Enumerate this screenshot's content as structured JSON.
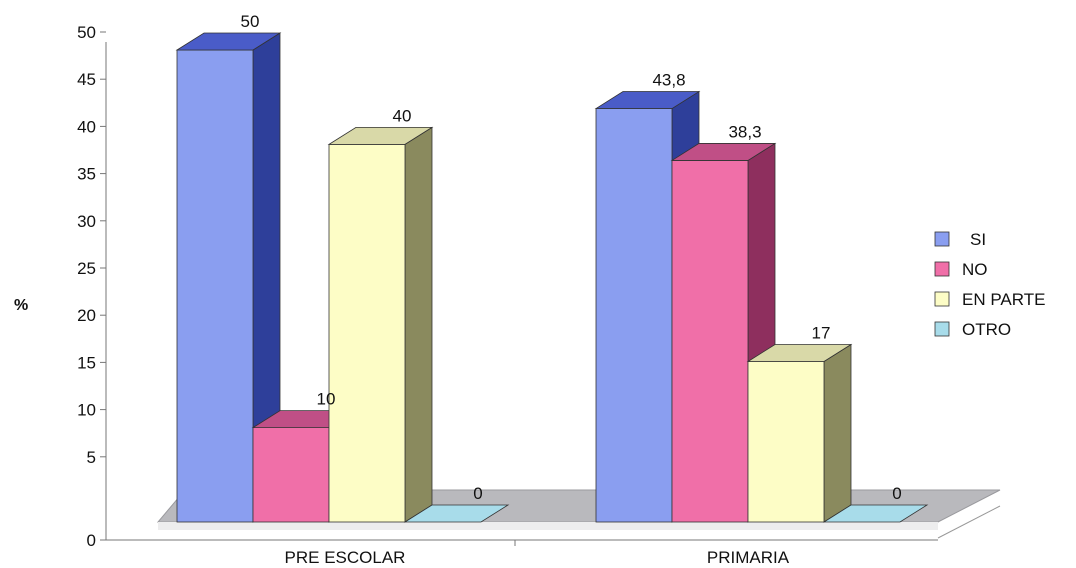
{
  "chart_data": {
    "type": "bar",
    "title": "",
    "xlabel": "",
    "ylabel": "%",
    "ylim": [
      0,
      50
    ],
    "yticks": [
      0,
      5,
      10,
      15,
      20,
      25,
      30,
      35,
      40,
      45,
      50
    ],
    "categories": [
      "PRE ESCOLAR",
      "PRIMARIA"
    ],
    "series": [
      {
        "name": "SI",
        "values": [
          50,
          43.8
        ],
        "labels": [
          "50",
          "43,8"
        ],
        "color": "#8a9ef0",
        "side": "#2e3f9a",
        "top": "#4a5cc8"
      },
      {
        "name": "NO",
        "values": [
          10,
          38.3
        ],
        "labels": [
          "10",
          "38,3"
        ],
        "color": "#f06fa8",
        "side": "#8e2f5e",
        "top": "#c04f86"
      },
      {
        "name": "EN PARTE",
        "values": [
          40,
          17
        ],
        "labels": [
          "40",
          "17"
        ],
        "color": "#fdfdc6",
        "side": "#8a8a5e",
        "top": "#d9d9a8"
      },
      {
        "name": "OTRO",
        "values": [
          0,
          0
        ],
        "labels": [
          "0",
          "0"
        ],
        "color": "#a8dcea",
        "side": "#5a9ab0",
        "top": "#a8dcea"
      }
    ],
    "grid": false,
    "legend_position": "right"
  }
}
